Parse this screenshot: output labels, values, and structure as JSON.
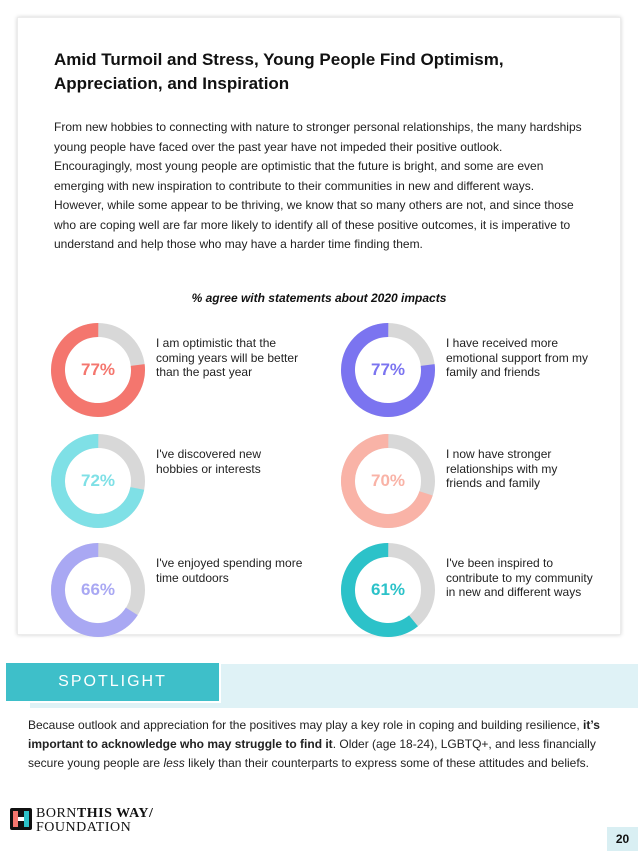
{
  "title_lines": [
    "Amid Turmoil and Stress, Young People Find Optimism,",
    "Appreciation, and Inspiration"
  ],
  "intro": "From new hobbies to connecting with nature to stronger personal relationships, the many hardships young people have faced over the past year have not impeded their positive outlook. Encouragingly, most young people are optimistic that the future is bright, and some are even emerging with new inspiration to contribute to their communities in new and different ways. However, while some appear to be thriving, we know that so many others are not, and since those who are coping well are far more likely to identify all of these positive outcomes, it is imperative to understand and help those who may have a harder time finding them.",
  "subhead": "% agree with statements about 2020 impacts",
  "stats": [
    {
      "percent": "77%",
      "value": 77,
      "color": "#f4766e",
      "label": "I am optimistic that the coming years will be better than the past year"
    },
    {
      "percent": "77%",
      "value": 77,
      "color": "#7b74f0",
      "label": "I have received more emotional support from my family and friends"
    },
    {
      "percent": "72%",
      "value": 72,
      "color": "#7fe0e6",
      "label": "I've discovered new hobbies or interests"
    },
    {
      "percent": "70%",
      "value": 70,
      "color": "#f9b3a7",
      "label": "I now have stronger relationships with my friends and family"
    },
    {
      "percent": "66%",
      "value": 66,
      "color": "#a9a8f3",
      "label": "I've enjoyed spending more time outdoors"
    },
    {
      "percent": "61%",
      "value": 61,
      "color": "#2cc2c9",
      "label": "I've been inspired to contribute to my community in new and different ways"
    }
  ],
  "spotlight": {
    "heading": "SPOTLIGHT",
    "text_pre": "Because outlook and appreciation for the positives may play a key role in coping and building resilience, ",
    "text_bold": "it’s important to acknowledge who may struggle to find it",
    "text_mid": ". Older (age 18-24), LGBTQ+, and less financially secure young people are ",
    "text_italic": "less",
    "text_post": " likely than their counterparts to express some of these attitudes and beliefs."
  },
  "logo": {
    "line1_a": "BORN",
    "line1_b": "THIS WAY/",
    "line2": "FOUNDATION"
  },
  "page_number": "20",
  "track_color": "#d8d8d8"
}
